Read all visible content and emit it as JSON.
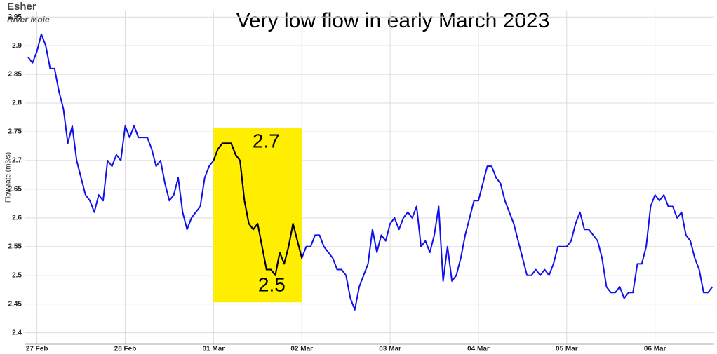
{
  "header": {
    "site": "Esher",
    "river": "River Mole"
  },
  "chart_data": {
    "type": "line",
    "title": "Very low flow in early March 2023",
    "y_label": "Flow rate (m3/s)",
    "x": [
      -0.1,
      -0.05,
      0.0,
      0.05,
      0.1,
      0.15,
      0.2,
      0.25,
      0.3,
      0.35,
      0.4,
      0.45,
      0.5,
      0.55,
      0.6,
      0.65,
      0.7,
      0.75,
      0.8,
      0.85,
      0.9,
      0.95,
      1.0,
      1.05,
      1.1,
      1.15,
      1.2,
      1.25,
      1.3,
      1.35,
      1.4,
      1.45,
      1.5,
      1.55,
      1.6,
      1.65,
      1.7,
      1.75,
      1.8,
      1.85,
      1.9,
      1.95,
      2.0,
      2.05,
      2.1,
      2.15,
      2.2,
      2.25,
      2.3,
      2.35,
      2.4,
      2.45,
      2.5,
      2.55,
      2.6,
      2.65,
      2.7,
      2.75,
      2.8,
      2.85,
      2.9,
      2.95,
      3.0,
      3.05,
      3.1,
      3.15,
      3.2,
      3.25,
      3.3,
      3.35,
      3.4,
      3.45,
      3.5,
      3.55,
      3.6,
      3.65,
      3.7,
      3.75,
      3.8,
      3.85,
      3.9,
      3.95,
      4.0,
      4.05,
      4.1,
      4.15,
      4.2,
      4.25,
      4.3,
      4.35,
      4.4,
      4.45,
      4.5,
      4.55,
      4.6,
      4.65,
      4.7,
      4.75,
      4.8,
      4.85,
      4.9,
      4.95,
      5.0,
      5.05,
      5.1,
      5.15,
      5.2,
      5.25,
      5.3,
      5.35,
      5.4,
      5.45,
      5.5,
      5.55,
      5.6,
      5.65,
      5.7,
      5.75,
      5.8,
      5.85,
      5.9,
      5.95,
      6.0,
      6.05,
      6.1,
      6.15,
      6.2,
      6.25,
      6.3,
      6.35,
      6.4,
      6.45,
      6.5,
      6.55,
      6.6,
      6.65,
      6.7,
      6.75,
      6.8,
      6.85,
      6.9,
      6.95,
      7.0,
      7.05,
      7.1,
      7.15,
      7.2,
      7.25,
      7.3,
      7.35,
      7.4,
      7.45,
      7.5,
      7.55,
      7.6,
      7.65
    ],
    "series": [
      {
        "color": "#1010ee",
        "values": [
          2.88,
          2.87,
          2.89,
          2.92,
          2.9,
          2.86,
          2.86,
          2.82,
          2.79,
          2.73,
          2.76,
          2.7,
          2.67,
          2.64,
          2.63,
          2.61,
          2.64,
          2.63,
          2.7,
          2.69,
          2.71,
          2.7,
          2.76,
          2.74,
          2.76,
          2.74,
          2.74,
          2.74,
          2.72,
          2.69,
          2.7,
          2.66,
          2.63,
          2.64,
          2.67,
          2.61,
          2.58,
          2.6,
          2.61,
          2.62,
          2.67,
          2.69,
          2.7,
          2.72,
          2.73,
          2.73,
          2.73,
          2.71,
          2.7,
          2.63,
          2.59,
          2.58,
          2.59,
          2.55,
          2.51,
          2.51,
          2.5,
          2.54,
          2.52,
          2.55,
          2.59,
          2.56,
          2.53,
          2.55,
          2.55,
          2.57,
          2.57,
          2.55,
          2.54,
          2.53,
          2.51,
          2.51,
          2.5,
          2.46,
          2.44,
          2.48,
          2.5,
          2.52,
          2.58,
          2.54,
          2.57,
          2.56,
          2.59,
          2.6,
          2.58,
          2.6,
          2.61,
          2.6,
          2.62,
          2.55,
          2.56,
          2.54,
          2.57,
          2.62,
          2.49,
          2.55,
          2.49,
          2.5,
          2.53,
          2.57,
          2.6,
          2.63,
          2.63,
          2.66,
          2.69,
          2.69,
          2.67,
          2.66,
          2.63,
          2.61,
          2.59,
          2.56,
          2.53,
          2.5,
          2.5,
          2.51,
          2.5,
          2.51,
          2.5,
          2.52,
          2.55,
          2.55,
          2.55,
          2.56,
          2.59,
          2.61,
          2.58,
          2.58,
          2.57,
          2.56,
          2.53,
          2.48,
          2.47,
          2.47,
          2.48,
          2.46,
          2.47,
          2.47,
          2.52,
          2.52,
          2.55,
          2.62,
          2.64,
          2.63,
          2.64,
          2.62,
          2.62,
          2.6,
          2.61,
          2.57,
          2.56,
          2.53,
          2.51,
          2.47,
          2.47,
          2.48
        ]
      }
    ],
    "xlim": [
      -0.14,
      7.67
    ],
    "xticks": [
      {
        "value": 0,
        "label": "27 Feb"
      },
      {
        "value": 1,
        "label": "28 Feb"
      },
      {
        "value": 2,
        "label": "01 Mar"
      },
      {
        "value": 3,
        "label": "02 Mar"
      },
      {
        "value": 4,
        "label": "03 Mar"
      },
      {
        "value": 5,
        "label": "04 Mar"
      },
      {
        "value": 6,
        "label": "05 Mar"
      },
      {
        "value": 7,
        "label": "06 Mar"
      }
    ],
    "ylim": [
      2.38,
      2.96
    ],
    "yticks": [
      2.4,
      2.45,
      2.5,
      2.55,
      2.6,
      2.65,
      2.7,
      2.75,
      2.8,
      2.85,
      2.9,
      2.95
    ],
    "grid": true,
    "highlight": {
      "xlim": [
        2,
        3
      ],
      "ylim": [
        2.453,
        2.757
      ],
      "color": "#ffee00",
      "line_color": "#000000"
    },
    "annotations": [
      "2.7",
      "2.5"
    ]
  }
}
